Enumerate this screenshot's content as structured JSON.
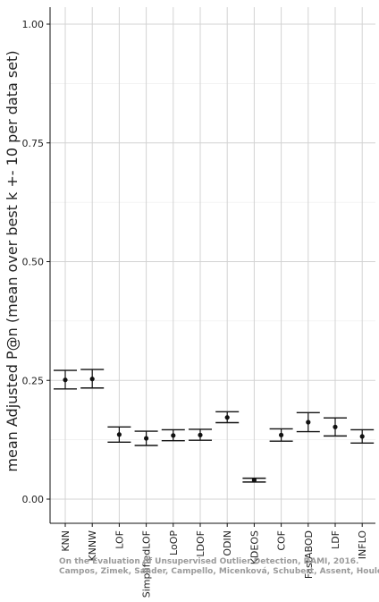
{
  "chart_data": {
    "type": "scatter",
    "ylabel": "mean Adjusted P@n (mean over best k +- 10 per data set)",
    "xlabel": "",
    "ylim": [
      0,
      1.0
    ],
    "y_ticks": [
      "0.00",
      "0.25",
      "0.50",
      "0.75",
      "1.00"
    ],
    "grid": true,
    "categories": [
      "KNN",
      "KNNW",
      "LOF",
      "SimplifiedLOF",
      "LoOP",
      "LDOF",
      "ODIN",
      "KDEOS",
      "COF",
      "FastABOD",
      "LDF",
      "INFLO"
    ],
    "series": [
      {
        "mean": [
          0.251,
          0.253,
          0.136,
          0.128,
          0.134,
          0.135,
          0.172,
          0.04,
          0.135,
          0.162,
          0.152,
          0.132
        ],
        "lower": [
          0.232,
          0.234,
          0.12,
          0.113,
          0.123,
          0.124,
          0.161,
          0.036,
          0.122,
          0.142,
          0.133,
          0.118
        ],
        "upper": [
          0.271,
          0.273,
          0.152,
          0.143,
          0.146,
          0.147,
          0.184,
          0.044,
          0.148,
          0.182,
          0.171,
          0.146
        ]
      }
    ],
    "colors": {
      "point": "#111111",
      "grid": "#d3d3d3",
      "axis": "#111111"
    }
  },
  "watermark": {
    "line1": "On the Evaluation of Unsupervised Outlier Detection, DAMI, 2016.",
    "line2": "Campos, Zimek, Sander, Campello, Micenková, Schubert, Assent, Houle"
  }
}
